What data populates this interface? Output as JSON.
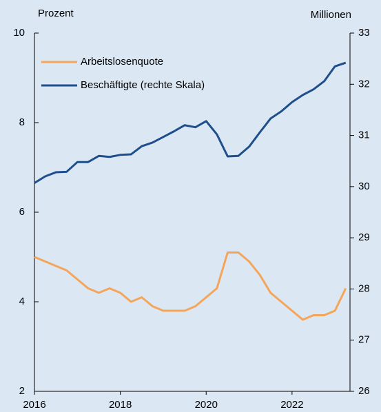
{
  "chart_data": {
    "type": "line",
    "y_label": "Prozent",
    "y2_label": "Millionen",
    "x": [
      2016,
      2016.25,
      2016.5,
      2016.75,
      2017,
      2017.25,
      2017.5,
      2017.75,
      2018,
      2018.25,
      2018.5,
      2018.75,
      2019,
      2019.25,
      2019.5,
      2019.75,
      2020,
      2020.25,
      2020.5,
      2020.75,
      2021,
      2021.25,
      2021.5,
      2021.75,
      2022,
      2022.25,
      2022.5,
      2022.75,
      2023,
      2023.25
    ],
    "series": [
      {
        "name": "Arbeitslosenquote",
        "color": "#f5a55a",
        "values": [
          5.0,
          4.9,
          4.8,
          4.7,
          4.5,
          4.3,
          4.2,
          4.3,
          4.2,
          4.0,
          4.1,
          3.9,
          3.8,
          3.8,
          3.8,
          3.9,
          4.1,
          4.3,
          5.1,
          5.1,
          4.9,
          4.6,
          4.2,
          4.0,
          3.8,
          3.6,
          3.7,
          3.7,
          3.8,
          4.3
        ]
      },
      {
        "name": "Beschäftigte (rechte Skala)",
        "color": "#1f4e8c",
        "axis": "y2",
        "values": [
          30.07,
          30.2,
          30.28,
          30.29,
          30.48,
          30.48,
          30.6,
          30.58,
          30.62,
          30.63,
          30.79,
          30.86,
          30.97,
          31.08,
          31.2,
          31.16,
          31.28,
          31.02,
          30.59,
          30.6,
          30.78,
          31.06,
          31.33,
          31.47,
          31.65,
          31.79,
          31.9,
          32.06,
          32.35,
          32.42
        ]
      }
    ],
    "xlim": [
      2016,
      2023.35
    ],
    "xticks": [
      2016,
      2018,
      2020,
      2022
    ],
    "ylim": [
      2,
      10
    ],
    "yticks": [
      2,
      4,
      6,
      8,
      10
    ],
    "y2lim": [
      26,
      33
    ],
    "y2ticks": [
      26,
      27,
      28,
      29,
      30,
      31,
      32,
      33
    ],
    "legend": "upper left"
  }
}
